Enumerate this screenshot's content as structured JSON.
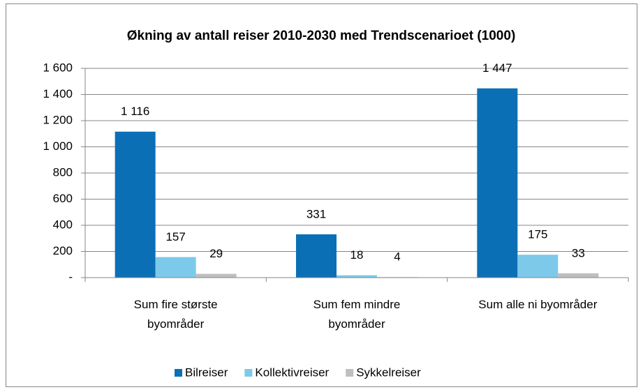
{
  "chart_data": {
    "type": "bar",
    "title": "Økning av antall reiser 2010-2030 med Trendscenarioet (1000)",
    "categories": [
      "Sum fire største byområder",
      "Sum fem mindre byområder",
      "Sum alle ni byområder"
    ],
    "series": [
      {
        "name": "Bilreiser",
        "color": "#0b6fb6",
        "values": [
          1116,
          331,
          1447
        ],
        "value_labels": [
          "1 116",
          "331",
          "1 447"
        ]
      },
      {
        "name": "Kollektivreiser",
        "color": "#7dc9ea",
        "values": [
          157,
          18,
          175
        ],
        "value_labels": [
          "157",
          "18",
          "175"
        ]
      },
      {
        "name": "Sykkelreiser",
        "color": "#bfbfbf",
        "values": [
          29,
          4,
          33
        ],
        "value_labels": [
          "29",
          "4",
          "33"
        ]
      }
    ],
    "ylim": [
      0,
      1600
    ],
    "yticks": [
      {
        "value": 0,
        "label": "-"
      },
      200,
      400,
      600,
      800,
      {
        "value": 1000,
        "label": "1 000"
      },
      {
        "value": 1200,
        "label": "1 200"
      },
      {
        "value": 1400,
        "label": "1 400"
      },
      {
        "value": 1600,
        "label": "1 600"
      }
    ],
    "grid": true,
    "legend": "bottom"
  }
}
